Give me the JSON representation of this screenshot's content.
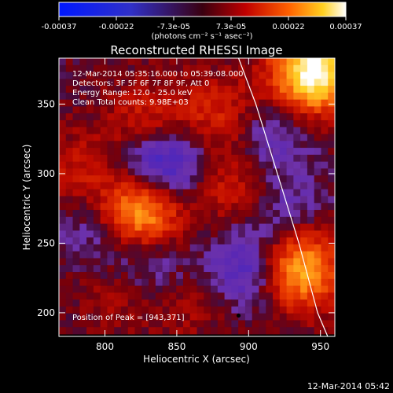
{
  "chart_data": {
    "type": "heatmap",
    "title": "Reconstructed RHESSI Image",
    "xlabel": "Heliocentric X (arcsec)",
    "ylabel": "Heliocentric Y (arcsec)",
    "xlim": [
      768,
      960
    ],
    "ylim": [
      183,
      383
    ],
    "x_ticks": [
      800,
      850,
      900,
      950
    ],
    "y_ticks": [
      200,
      250,
      300,
      350
    ],
    "colorbar": {
      "ticks": [
        "-0.00037",
        "-0.00022",
        "-7.3e-05",
        "7.3e-05",
        "0.00022",
        "0.00037"
      ],
      "unit_label": "(photons cm⁻² s⁻¹ asec⁻²)",
      "range": [
        -0.00037,
        0.00037
      ]
    },
    "annotations": [
      "12-Mar-2014 05:35:16.000 to 05:39:08.000",
      "Detectors: 3F 5F 6F 7F 8F 9F, Att 0",
      "Energy Range: 12.0 - 25.0 keV",
      "Clean     Total counts: 9.98E+03"
    ],
    "peak_label": "Position of Peak = [943,371]",
    "peak": [
      943,
      371
    ],
    "marker_point": [
      893,
      198
    ],
    "limb": [
      [
        893,
        383
      ],
      [
        905,
        350
      ],
      [
        920,
        300
      ],
      [
        935,
        250
      ],
      [
        948,
        200
      ],
      [
        955,
        183
      ]
    ],
    "sources": [
      {
        "x": 945,
        "y": 372,
        "amp": 0.00037
      },
      {
        "x": 825,
        "y": 270,
        "amp": 0.0003
      },
      {
        "x": 935,
        "y": 230,
        "amp": 0.00028
      },
      {
        "x": 830,
        "y": 335,
        "amp": 0.00012
      },
      {
        "x": 880,
        "y": 342,
        "amp": 0.00011
      },
      {
        "x": 890,
        "y": 290,
        "amp": 0.0001
      },
      {
        "x": 780,
        "y": 300,
        "amp": 8e-05
      },
      {
        "x": 810,
        "y": 215,
        "amp": 6e-05
      },
      {
        "x": 862,
        "y": 205,
        "amp": 5e-05
      },
      {
        "x": 840,
        "y": 307,
        "amp": -0.00022
      },
      {
        "x": 900,
        "y": 230,
        "amp": -0.00016
      },
      {
        "x": 828,
        "y": 240,
        "amp": -0.00012
      },
      {
        "x": 915,
        "y": 328,
        "amp": -0.0001
      },
      {
        "x": 790,
        "y": 260,
        "amp": -8e-05
      },
      {
        "x": 925,
        "y": 275,
        "amp": -8e-05
      }
    ]
  },
  "timestamp": "12-Mar-2014 05:42"
}
